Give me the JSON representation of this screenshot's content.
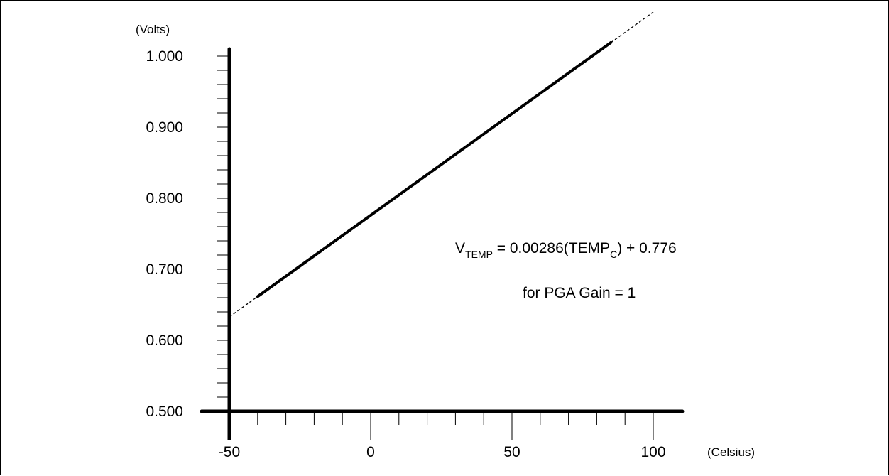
{
  "chart_data": {
    "type": "line",
    "title": "",
    "ylabel": "(Volts)",
    "xlabel": "(Celsius)",
    "xlim": [
      -50,
      110
    ],
    "ylim": [
      0.5,
      1.0
    ],
    "xticks": [
      -50,
      0,
      50,
      100
    ],
    "xtick_labels": [
      "-50",
      "0",
      "50",
      "100"
    ],
    "yticks": [
      0.5,
      0.6,
      0.7,
      0.8,
      0.9,
      1.0
    ],
    "ytick_labels": [
      "0.500",
      "0.600",
      "0.700",
      "0.800",
      "0.900",
      "1.000"
    ],
    "grid": false,
    "series": [
      {
        "style": "solid",
        "x": [
          -40,
          85
        ],
        "y": [
          0.6616,
          1.0191
        ]
      },
      {
        "style": "dashed",
        "x": [
          -50,
          -40
        ],
        "y": [
          0.633,
          0.6616
        ]
      },
      {
        "style": "dashed",
        "x": [
          85,
          100
        ],
        "y": [
          1.0191,
          1.062
        ]
      }
    ],
    "annotations": {
      "equation": {
        "v": "V",
        "v_sub": "TEMP",
        "middle": " = 0.00286(TEMP",
        "c_sub": "C",
        "end": ") + 0.776"
      },
      "note": "for PGA Gain = 1"
    }
  }
}
